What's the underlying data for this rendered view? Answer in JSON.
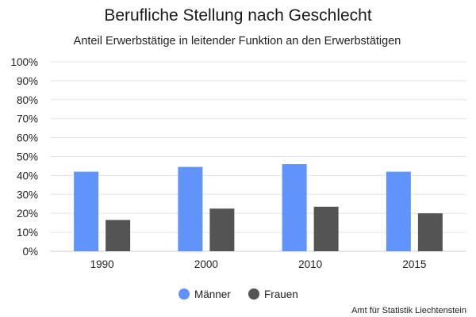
{
  "chart_data": {
    "type": "bar",
    "title": "Berufliche Stellung nach Geschlecht",
    "subtitle": "Anteil Erwerbstätige in leitender Funktion an den Erwerbstätigen",
    "categories": [
      "1990",
      "2000",
      "2010",
      "2015"
    ],
    "series": [
      {
        "name": "Männer",
        "values": [
          42,
          44.5,
          46,
          42
        ],
        "color": "#6194fb"
      },
      {
        "name": "Frauen",
        "values": [
          16.5,
          22.5,
          23.5,
          20
        ],
        "color": "#545454"
      }
    ],
    "yticks": [
      "0%",
      "10%",
      "20%",
      "30%",
      "40%",
      "50%",
      "60%",
      "70%",
      "80%",
      "90%",
      "100%"
    ],
    "ylim": [
      0,
      100
    ],
    "grid": true,
    "legend_position": "bottom-center",
    "xlabel": "",
    "ylabel": ""
  },
  "source_note": "Amt für Statistik Liechtenstein"
}
